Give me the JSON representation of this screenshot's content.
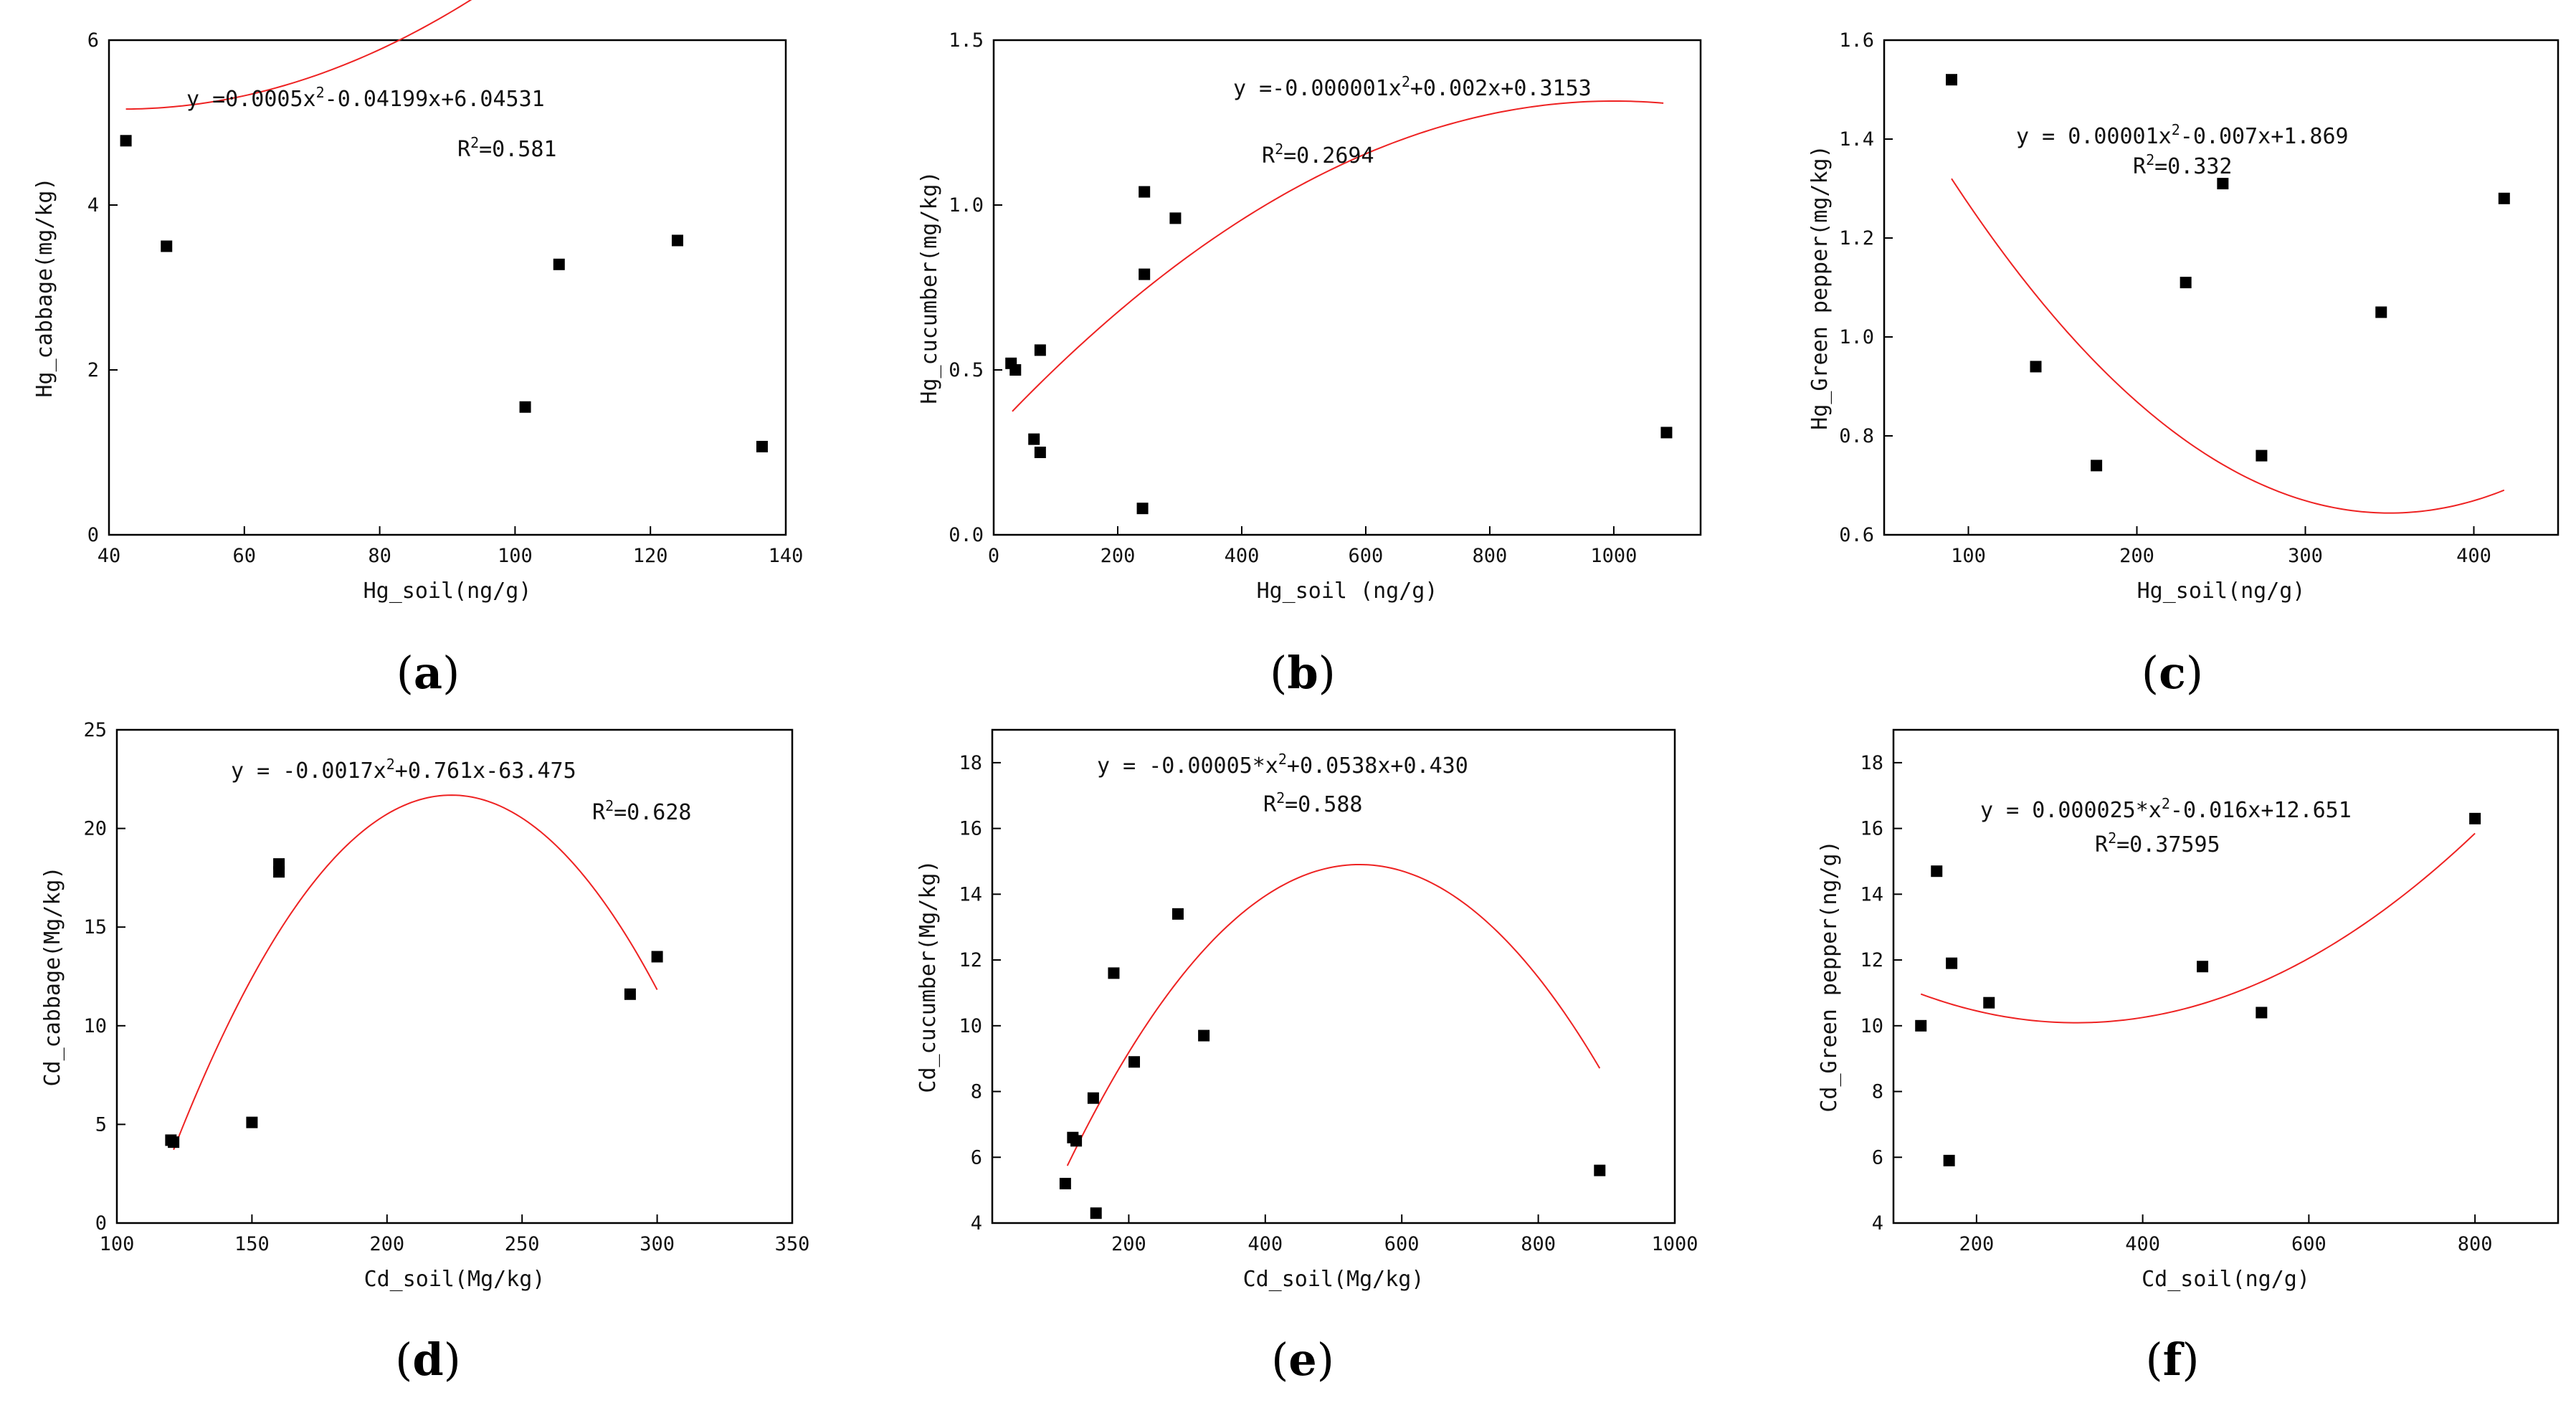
{
  "chart_data": [
    {
      "type": "scatter",
      "panel_label": "a",
      "xlabel": "Hg_soil(ng/g)",
      "ylabel": "Hg_cabbage(mg/kg)",
      "xlim": [
        40,
        140
      ],
      "ylim": [
        0,
        6
      ],
      "xticks": [
        40,
        60,
        80,
        100,
        120,
        140
      ],
      "yticks": [
        0,
        2,
        4,
        6
      ],
      "xtick_labels": [
        "40",
        "60",
        "80",
        "100",
        "120",
        "140"
      ],
      "ytick_labels": [
        "0",
        "2",
        "4",
        "6"
      ],
      "points": [
        [
          42.5,
          4.78
        ],
        [
          48.5,
          3.5
        ],
        [
          101.5,
          1.55
        ],
        [
          106.5,
          3.28
        ],
        [
          124,
          3.57
        ],
        [
          136.5,
          1.07
        ]
      ],
      "fit": {
        "coeffs": [
          0.0005,
          -0.04199,
          6.04531
        ],
        "range": [
          42.5,
          136.5
        ]
      },
      "equation": {
        "prefix": "y =0.0005x",
        "sup": "2",
        "suffix": "-0.04199x+6.04531"
      },
      "r2": {
        "pre": "R",
        "sup": "2",
        "post": "=0.581"
      }
    },
    {
      "type": "scatter",
      "panel_label": "b",
      "xlabel": "Hg_soil (ng/g)",
      "ylabel": "Hg_cucumber(mg/kg)",
      "xlim": [
        0,
        1140
      ],
      "ylim": [
        0,
        1.5
      ],
      "xticks": [
        0,
        200,
        400,
        600,
        800,
        1000
      ],
      "yticks": [
        0,
        0.5,
        1.0,
        1.5
      ],
      "xtick_labels": [
        "0",
        "200",
        "400",
        "600",
        "800",
        "1000"
      ],
      "ytick_labels": [
        "0.0",
        "0.5",
        "1.0",
        "1.5"
      ],
      "points": [
        [
          28,
          0.52
        ],
        [
          35,
          0.5
        ],
        [
          65,
          0.29
        ],
        [
          75,
          0.25
        ],
        [
          75,
          0.56
        ],
        [
          240,
          0.08
        ],
        [
          243,
          1.04
        ],
        [
          243,
          0.79
        ],
        [
          293,
          0.96
        ],
        [
          1085,
          0.31
        ]
      ],
      "fit": {
        "coeffs": [
          -1e-06,
          0.002,
          0.3153
        ],
        "range": [
          30,
          1080
        ]
      },
      "equation": {
        "prefix": "y =-0.000001x",
        "sup": "2",
        "suffix": "+0.002x+0.3153"
      },
      "r2": {
        "pre": "R",
        "sup": "2",
        "post": "=0.2694"
      }
    },
    {
      "type": "scatter",
      "panel_label": "c",
      "xlabel": "Hg_soil(ng/g)",
      "ylabel": "Hg_Green pepper(mg/kg)",
      "xlim": [
        50,
        450
      ],
      "ylim": [
        0.6,
        1.6
      ],
      "xticks": [
        100,
        200,
        300,
        400
      ],
      "yticks": [
        0.6,
        0.8,
        1.0,
        1.2,
        1.4,
        1.6
      ],
      "xtick_labels": [
        "100",
        "200",
        "300",
        "400"
      ],
      "ytick_labels": [
        "0.6",
        "0.8",
        "1.0",
        "1.2",
        "1.4",
        "1.6"
      ],
      "points": [
        [
          90,
          1.52
        ],
        [
          140,
          0.94
        ],
        [
          176,
          0.74
        ],
        [
          229,
          1.11
        ],
        [
          251,
          1.31
        ],
        [
          274,
          0.76
        ],
        [
          345,
          1.05
        ],
        [
          418,
          1.28
        ]
      ],
      "fit": {
        "coeffs": [
          1e-05,
          -0.007,
          1.869
        ],
        "range": [
          90,
          418
        ]
      },
      "equation": {
        "prefix": "y = 0.00001x",
        "sup": "2",
        "suffix": "-0.007x+1.869"
      },
      "r2": {
        "pre": "R",
        "sup": "2",
        "post": "=0.332"
      }
    },
    {
      "type": "scatter",
      "panel_label": "d",
      "xlabel": "Cd_soil(Mg/kg)",
      "ylabel": "Cd_cabbage(Mg/kg)",
      "xlim": [
        100,
        350
      ],
      "ylim": [
        0,
        25
      ],
      "xticks": [
        100,
        150,
        200,
        250,
        300,
        350
      ],
      "yticks": [
        0,
        5,
        10,
        15,
        20,
        25
      ],
      "xtick_labels": [
        "100",
        "150",
        "200",
        "250",
        "300",
        "350"
      ],
      "ytick_labels": [
        "0",
        "5",
        "10",
        "15",
        "20",
        "25"
      ],
      "points": [
        [
          120,
          4.2
        ],
        [
          121,
          4.1
        ],
        [
          150,
          5.1
        ],
        [
          160,
          18.2
        ],
        [
          160,
          17.8
        ],
        [
          290,
          11.6
        ],
        [
          300,
          13.5
        ]
      ],
      "fit": {
        "coeffs": [
          -0.0017,
          0.761,
          -63.475
        ],
        "range": [
          121,
          300
        ]
      },
      "equation": {
        "prefix": "y = -0.0017x",
        "sup": "2",
        "suffix": "+0.761x-63.475"
      },
      "r2": {
        "pre": "R",
        "sup": "2",
        "post": "=0.628"
      }
    },
    {
      "type": "scatter",
      "panel_label": "e",
      "xlabel": "Cd_soil(Mg/kg)",
      "ylabel": "Cd_cucumber(Mg/kg)",
      "xlim": [
        0,
        1000
      ],
      "ylim": [
        4,
        19
      ],
      "xticks": [
        200,
        400,
        600,
        800,
        1000
      ],
      "yticks": [
        4,
        6,
        8,
        10,
        12,
        14,
        16,
        18
      ],
      "xtick_labels": [
        "200",
        "400",
        "600",
        "800",
        "1000"
      ],
      "ytick_labels": [
        "4",
        "6",
        "8",
        "10",
        "12",
        "14",
        "16",
        "18"
      ],
      "points": [
        [
          107,
          5.2
        ],
        [
          118,
          6.6
        ],
        [
          123,
          6.5
        ],
        [
          148,
          7.8
        ],
        [
          152,
          4.3
        ],
        [
          178,
          11.6
        ],
        [
          208,
          8.9
        ],
        [
          272,
          13.4
        ],
        [
          310,
          9.7
        ],
        [
          890,
          5.6
        ]
      ],
      "fit": {
        "coeffs": [
          -5e-05,
          0.0538,
          0.43
        ],
        "range": [
          110,
          890
        ]
      },
      "equation": {
        "prefix": "y = -0.00005*x",
        "sup": "2",
        "suffix": "+0.0538x+0.430"
      },
      "r2": {
        "pre": "R",
        "sup": "2",
        "post": "=0.588"
      }
    },
    {
      "type": "scatter",
      "panel_label": "f",
      "xlabel": "Cd_soil(ng/g)",
      "ylabel": "Cd_Green pepper(ng/g)",
      "xlim": [
        100,
        900
      ],
      "ylim": [
        4,
        19
      ],
      "xticks": [
        200,
        400,
        600,
        800
      ],
      "yticks": [
        4,
        6,
        8,
        10,
        12,
        14,
        16,
        18
      ],
      "xtick_labels": [
        "200",
        "400",
        "600",
        "800"
      ],
      "ytick_labels": [
        "4",
        "6",
        "8",
        "10",
        "12",
        "14",
        "16",
        "18"
      ],
      "points": [
        [
          133,
          10.0
        ],
        [
          152,
          14.7
        ],
        [
          167,
          5.9
        ],
        [
          170,
          11.9
        ],
        [
          215,
          10.7
        ],
        [
          472,
          11.8
        ],
        [
          543,
          10.4
        ],
        [
          800,
          16.3
        ]
      ],
      "fit": {
        "coeffs": [
          2.5e-05,
          -0.016,
          12.651
        ],
        "range": [
          133,
          800
        ]
      },
      "equation": {
        "prefix": "y = 0.000025*x",
        "sup": "2",
        "suffix": "-0.016x+12.651"
      },
      "r2": {
        "pre": "R",
        "sup": "2",
        "post": "=0.37595"
      }
    }
  ],
  "style": {
    "point_color": "#000000",
    "fit_color": "#ee2222",
    "axis_color": "#000000"
  }
}
